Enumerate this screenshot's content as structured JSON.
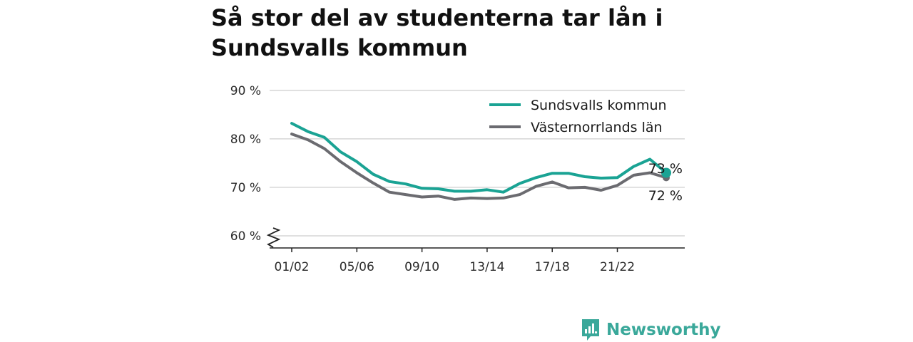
{
  "title": "Så stor del av studenterna tar lån i Sundsvalls kommun",
  "brand": {
    "name": "Newsworthy",
    "icon": "newsworthy-logo-icon",
    "color": "#3aa89a"
  },
  "chart_data": {
    "type": "line",
    "x": [
      "01/02",
      "02/03",
      "03/04",
      "04/05",
      "05/06",
      "06/07",
      "07/08",
      "08/09",
      "09/10",
      "10/11",
      "11/12",
      "12/13",
      "13/14",
      "14/15",
      "15/16",
      "16/17",
      "17/18",
      "18/19",
      "19/20",
      "20/21",
      "21/22",
      "22/23",
      "23/24",
      "24/25"
    ],
    "xticks": [
      "01/02",
      "05/06",
      "09/10",
      "13/14",
      "17/18",
      "21/22"
    ],
    "yticks": [
      "60 %",
      "70 %",
      "80 %",
      "90 %"
    ],
    "ylim": [
      57.5,
      91
    ],
    "broken_axis": true,
    "grid": true,
    "legend": "top-right",
    "series": [
      {
        "name": "Sundsvalls kommun",
        "color": "#1aa394",
        "values": [
          83.2,
          81.5,
          80.3,
          77.3,
          75.3,
          72.7,
          71.2,
          70.7,
          69.8,
          69.7,
          69.2,
          69.2,
          69.5,
          69.0,
          70.8,
          72.0,
          72.9,
          72.9,
          72.2,
          71.9,
          72.0,
          74.3,
          75.8,
          73.0
        ],
        "end_label": "73 %"
      },
      {
        "name": "Västernorrlands län",
        "color": "#6b6b70",
        "values": [
          81.0,
          79.8,
          78.0,
          75.3,
          73.0,
          70.9,
          69.0,
          68.5,
          68.0,
          68.2,
          67.5,
          67.8,
          67.7,
          67.8,
          68.5,
          70.2,
          71.1,
          69.9,
          70.0,
          69.4,
          70.4,
          72.5,
          73.0,
          72.0
        ],
        "end_label": "72 %"
      }
    ]
  }
}
